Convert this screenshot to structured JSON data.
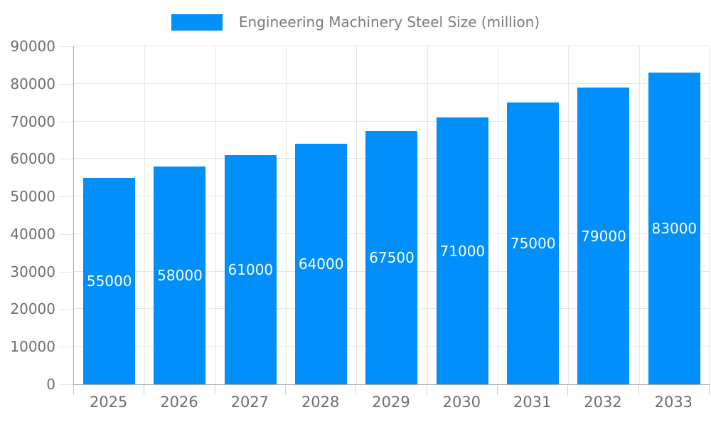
{
  "chart_data": {
    "type": "bar",
    "title": "",
    "legend": {
      "label": "Engineering Machinery Steel Size (million)",
      "position": "top",
      "marker_color": "#008FFB"
    },
    "categories": [
      "2025",
      "2026",
      "2027",
      "2028",
      "2029",
      "2030",
      "2031",
      "2032",
      "2033"
    ],
    "series": [
      {
        "name": "Engineering Machinery Steel Size (million)",
        "values": [
          55000,
          58000,
          61000,
          64000,
          67500,
          71000,
          75000,
          79000,
          83000
        ],
        "color": "#008FFB"
      }
    ],
    "data_labels": [
      "55000",
      "58000",
      "61000",
      "64000",
      "67500",
      "71000",
      "75000",
      "79000",
      "83000"
    ],
    "data_label_style": {
      "color": "#ffffff",
      "position": "center-of-bar"
    },
    "xlabel": "",
    "ylabel": "",
    "ylim": [
      0,
      90000
    ],
    "ytick_step": 10000,
    "ytick_labels": [
      "0",
      "10000",
      "20000",
      "30000",
      "40000",
      "50000",
      "60000",
      "70000",
      "80000",
      "90000"
    ],
    "grid": {
      "horizontal": true,
      "vertical": true
    }
  },
  "colors": {
    "bar": "#008FFB",
    "grid": "#e6e6e6",
    "axis": "#ababab",
    "y_tick": "#e6e6e6",
    "x_tick": "#cfcfcf",
    "axis_label": "#6e6e6e",
    "legend_text": "#7a7a7a",
    "value_label": "#ffffff",
    "background": "#ffffff"
  }
}
